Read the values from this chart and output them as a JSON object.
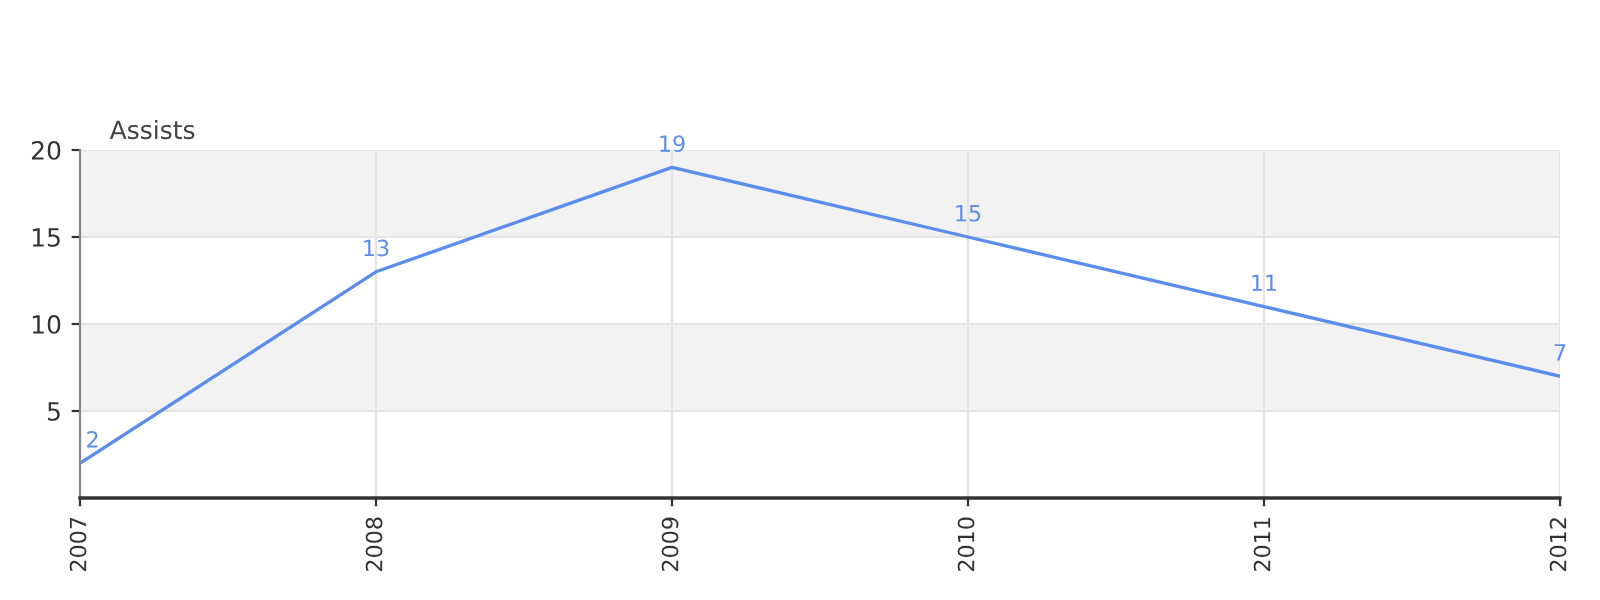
{
  "chart_data": {
    "type": "line",
    "title": "Assists",
    "categories": [
      "2007",
      "2008",
      "2009",
      "2010",
      "2011",
      "2012"
    ],
    "series": [
      {
        "color": "#5b8def",
        "values": [
          2,
          13,
          19,
          15,
          11,
          7
        ]
      }
    ],
    "ylim": [
      0,
      20
    ],
    "yticks": [
      5,
      10,
      15,
      20
    ],
    "grid": true,
    "data_labels": true,
    "marker": "none",
    "line_style": "solid",
    "bands": [
      {
        "axis": "y",
        "from": 5,
        "to": 10,
        "color": "#f2f2f2"
      },
      {
        "axis": "y",
        "from": 15,
        "to": 20,
        "color": "#f2f2f2"
      }
    ]
  }
}
